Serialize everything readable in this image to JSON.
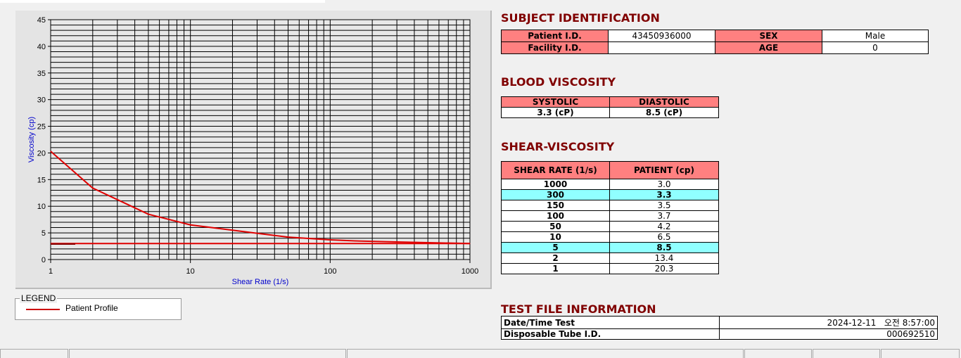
{
  "chart_data": {
    "type": "line",
    "xlabel": "Shear Rate (1/s)",
    "ylabel": "Viscosity (cp)",
    "xscale": "log",
    "xlim": [
      1,
      1000
    ],
    "ylim": [
      0,
      45
    ],
    "xticks": [
      "1",
      "10",
      "100",
      "1000"
    ],
    "yticks": [
      "0",
      "5",
      "10",
      "15",
      "20",
      "25",
      "30",
      "35",
      "40",
      "45"
    ],
    "grid": true,
    "series": [
      {
        "name": "Patient Profile",
        "color": "#e00000",
        "x": [
          1,
          2,
          5,
          10,
          50,
          100,
          150,
          300,
          1000
        ],
        "y": [
          20.3,
          13.4,
          8.5,
          6.5,
          4.2,
          3.7,
          3.5,
          3.3,
          3.0
        ]
      }
    ],
    "reference_line": {
      "y": 3.0,
      "color": "#e00000"
    }
  },
  "legend": {
    "title": "LEGEND",
    "items": [
      "Patient Profile"
    ]
  },
  "subject": {
    "title": "SUBJECT IDENTIFICATION",
    "patient_id_label": "Patient I.D.",
    "patient_id": "43450936000",
    "sex_label": "SEX",
    "sex": "Male",
    "facility_label": "Facility I.D.",
    "facility": "",
    "age_label": "AGE",
    "age": "0"
  },
  "blood": {
    "title": "BLOOD VISCOSITY",
    "systolic_label": "SYSTOLIC",
    "diastolic_label": "DIASTOLIC",
    "systolic": "3.3 (cP)",
    "diastolic": "8.5 (cP)"
  },
  "shear": {
    "title": "SHEAR-VISCOSITY",
    "col1": "SHEAR RATE (1/s)",
    "col2": "PATIENT (cp)",
    "rows": [
      [
        "1000",
        "3.0",
        false
      ],
      [
        "300",
        "3.3",
        true
      ],
      [
        "150",
        "3.5",
        false
      ],
      [
        "100",
        "3.7",
        false
      ],
      [
        "50",
        "4.2",
        false
      ],
      [
        "10",
        "6.5",
        false
      ],
      [
        "5",
        "8.5",
        true
      ],
      [
        "2",
        "13.4",
        false
      ],
      [
        "1",
        "20.3",
        false
      ]
    ]
  },
  "testfile": {
    "title": "TEST FILE INFORMATION",
    "date_label": "Date/Time Test",
    "date": "2024-12-11   오전 8:57:00",
    "tube_label": "Disposable Tube I.D.",
    "tube": "000692510"
  }
}
